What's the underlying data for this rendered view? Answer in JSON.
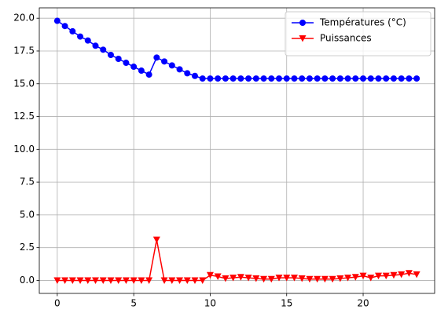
{
  "chart_data": {
    "type": "line",
    "x": [
      0,
      0.5,
      1,
      1.5,
      2,
      2.5,
      3,
      3.5,
      4,
      4.5,
      5,
      5.5,
      6,
      6.5,
      7,
      7.5,
      8,
      8.5,
      9,
      9.5,
      10,
      10.5,
      11,
      11.5,
      12,
      12.5,
      13,
      13.5,
      14,
      14.5,
      15,
      15.5,
      16,
      16.5,
      17,
      17.5,
      18,
      18.5,
      19,
      19.5,
      20,
      20.5,
      21,
      21.5,
      22,
      22.5,
      23,
      23.5
    ],
    "series": [
      {
        "name": "Températures (°C)",
        "color": "#0000ff",
        "marker": "circle",
        "values": [
          19.8,
          19.4,
          19.0,
          18.6,
          18.3,
          17.9,
          17.6,
          17.2,
          16.9,
          16.6,
          16.3,
          16.0,
          15.7,
          17.0,
          16.7,
          16.4,
          16.1,
          15.8,
          15.6,
          15.4,
          15.4,
          15.4,
          15.4,
          15.4,
          15.4,
          15.4,
          15.4,
          15.4,
          15.4,
          15.4,
          15.4,
          15.4,
          15.4,
          15.4,
          15.4,
          15.4,
          15.4,
          15.4,
          15.4,
          15.4,
          15.4,
          15.4,
          15.4,
          15.4,
          15.4,
          15.4,
          15.4,
          15.4
        ]
      },
      {
        "name": "Puissances",
        "color": "#ff0000",
        "marker": "triangle-down",
        "values": [
          0,
          0,
          0,
          0,
          0,
          0,
          0,
          0,
          0,
          0,
          0,
          0,
          0,
          3.1,
          0,
          0,
          0,
          0,
          0,
          0,
          0.4,
          0.3,
          0.15,
          0.2,
          0.25,
          0.2,
          0.15,
          0.1,
          0.1,
          0.2,
          0.2,
          0.2,
          0.15,
          0.1,
          0.1,
          0.1,
          0.1,
          0.15,
          0.2,
          0.25,
          0.35,
          0.2,
          0.35,
          0.35,
          0.4,
          0.45,
          0.55,
          0.45
        ]
      }
    ],
    "xlim": [
      -1.175,
      24.675
    ],
    "xticks": [
      0,
      5,
      10,
      15,
      20
    ],
    "ylim": [
      -0.99,
      20.79
    ],
    "yticks": [
      {
        "value": 0,
        "label": "0.0"
      },
      2.5,
      {
        "value": 5,
        "label": "5.0"
      },
      7.5,
      {
        "value": 10,
        "label": "10.0"
      },
      12.5,
      {
        "value": 15,
        "label": "15.0"
      },
      17.5,
      {
        "value": 20,
        "label": "20.0"
      }
    ],
    "grid": true,
    "legend": "upper right"
  }
}
